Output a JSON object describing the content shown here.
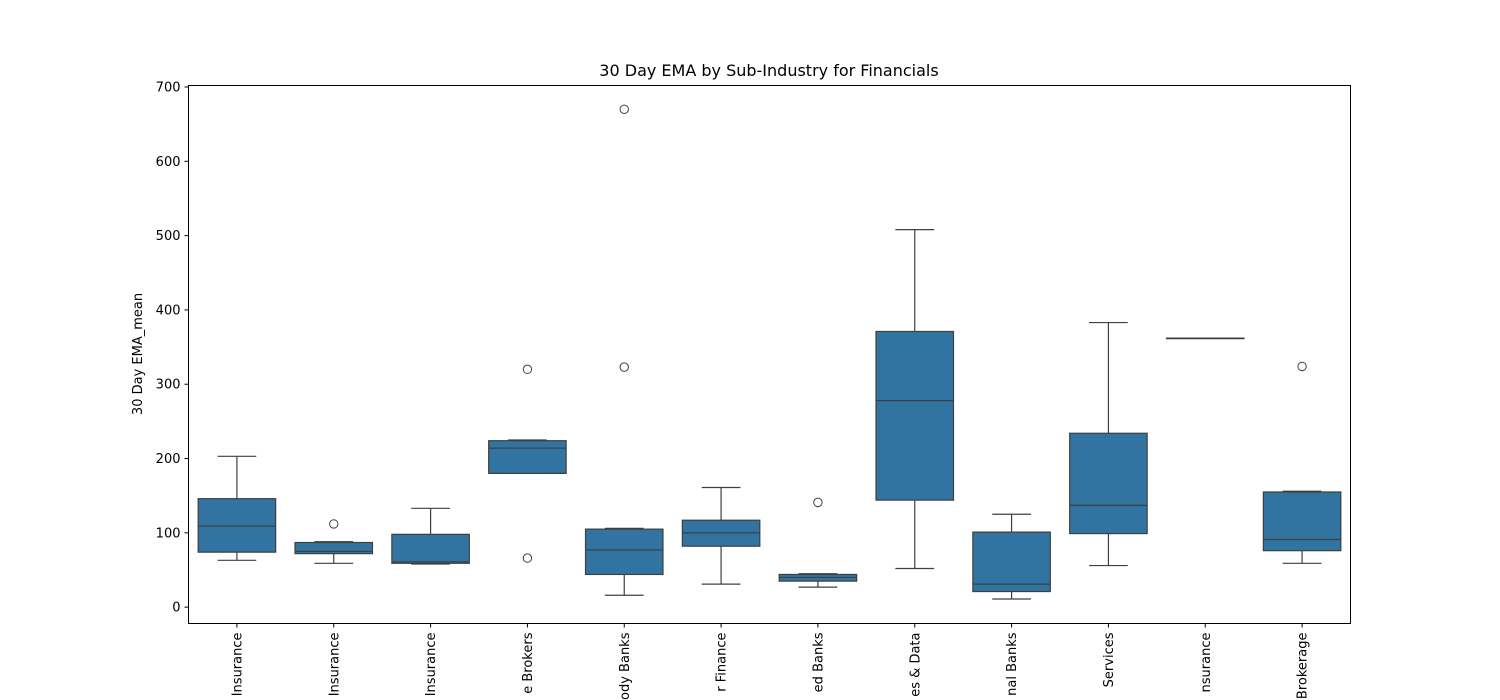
{
  "chart_data": {
    "type": "box",
    "title": "30 Day EMA by Sub-Industry for Financials",
    "xlabel": "",
    "ylabel": "30 Day EMA_mean",
    "ylim": [
      -22,
      702
    ],
    "yticks": [
      0,
      100,
      200,
      300,
      400,
      500,
      600,
      700
    ],
    "grid": false,
    "box_color": "#3274a1",
    "line_color": "#3f3f3f",
    "categories": [
      "Insurance",
      "Insurance",
      "Insurance",
      "e Brokers",
      "ody Banks",
      "r Finance",
      "ed Banks",
      "es & Data",
      "nal Banks",
      "Services",
      "nsurance",
      "Brokerage"
    ],
    "boxes": [
      {
        "whisker_low": 63,
        "q1": 74,
        "median": 109,
        "q3": 146,
        "whisker_high": 203,
        "outliers": []
      },
      {
        "whisker_low": 59,
        "q1": 72,
        "median": 75,
        "q3": 87,
        "whisker_high": 88,
        "outliers": [
          112
        ]
      },
      {
        "whisker_low": 58,
        "q1": 59,
        "median": 61,
        "q3": 98,
        "whisker_high": 133,
        "outliers": []
      },
      {
        "whisker_low": 180,
        "q1": 180,
        "median": 214,
        "q3": 224,
        "whisker_high": 225,
        "outliers": [
          320,
          66
        ]
      },
      {
        "whisker_low": 16,
        "q1": 44,
        "median": 77,
        "q3": 105,
        "whisker_high": 106,
        "outliers": [
          323,
          670
        ]
      },
      {
        "whisker_low": 31,
        "q1": 82,
        "median": 100,
        "q3": 117,
        "whisker_high": 161,
        "outliers": []
      },
      {
        "whisker_low": 27,
        "q1": 35,
        "median": 40,
        "q3": 44,
        "whisker_high": 45,
        "outliers": [
          141
        ]
      },
      {
        "whisker_low": 52,
        "q1": 144,
        "median": 278,
        "q3": 371,
        "whisker_high": 508,
        "outliers": []
      },
      {
        "whisker_low": 11,
        "q1": 21,
        "median": 31,
        "q3": 101,
        "whisker_high": 125,
        "outliers": []
      },
      {
        "whisker_low": 56,
        "q1": 99,
        "median": 137,
        "q3": 234,
        "whisker_high": 383,
        "outliers": []
      },
      {
        "whisker_low": 362,
        "q1": 362,
        "median": 362,
        "q3": 362,
        "whisker_high": 362,
        "outliers": []
      },
      {
        "whisker_low": 59,
        "q1": 76,
        "median": 91,
        "q3": 155,
        "whisker_high": 156,
        "outliers": [
          324
        ]
      }
    ]
  }
}
